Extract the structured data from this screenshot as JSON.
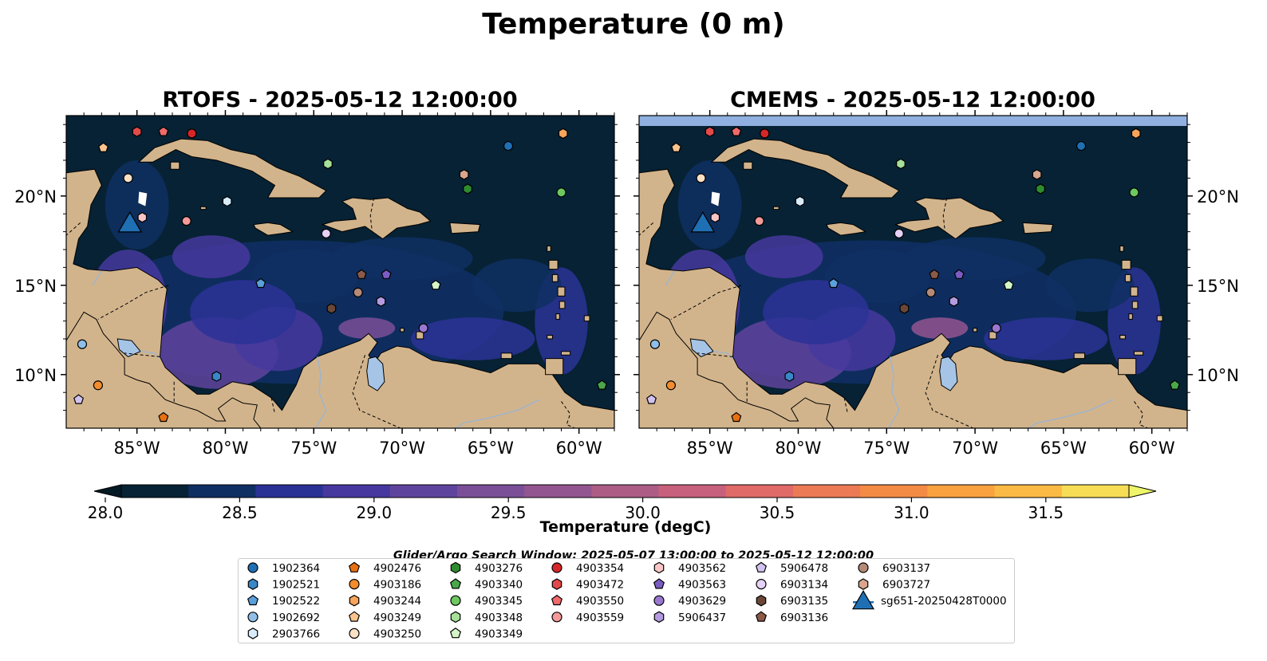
{
  "figure": {
    "suptitle": "Temperature (0 m)",
    "panels": [
      {
        "title": "RTOFS - 2025-05-12 12:00:00"
      },
      {
        "title": "CMEMS - 2025-05-12 12:00:00"
      }
    ],
    "lat_ticks": [
      "20°N",
      "15°N",
      "10°N"
    ],
    "lon_ticks": [
      "85°W",
      "80°W",
      "75°W",
      "70°W",
      "65°W",
      "60°W"
    ],
    "colorbar": {
      "label": "Temperature (degC)",
      "ticks": [
        "28.0",
        "28.5",
        "29.0",
        "29.5",
        "30.0",
        "30.5",
        "31.0",
        "31.5"
      ],
      "colors": [
        "#062234",
        "#0f2f63",
        "#2b3296",
        "#46389f",
        "#5f449d",
        "#7a4f98",
        "#93558f",
        "#ad5c86",
        "#c7607c",
        "#df6a68",
        "#ec7a55",
        "#f48b45",
        "#f9a23f",
        "#faba44",
        "#f7dd56"
      ],
      "under_color": "#041a25",
      "over_color": "#eef56a"
    },
    "legend": {
      "title": "Glider/Argo Search Window: 2025-05-07 13:00:00 to 2025-05-12 12:00:00"
    },
    "map_colors": {
      "land": "#d2b48c",
      "ocean_dark": "#062234",
      "lake": "#a6c4e6",
      "border": "#000000"
    }
  },
  "chart_data": {
    "type": "scatter",
    "x_axis": {
      "label": "",
      "range": [
        -89,
        -58
      ],
      "unit": "degrees longitude"
    },
    "y_axis": {
      "label": "",
      "range": [
        7,
        24.5
      ],
      "unit": "degrees latitude"
    },
    "series": [
      {
        "name": "1902364",
        "marker": "circle",
        "color": "#1f6fb4",
        "x": [
          -64.0
        ],
        "y": [
          22.8
        ]
      },
      {
        "name": "1902521",
        "marker": "hexagon",
        "color": "#3a87c8",
        "x": [
          -80.5
        ],
        "y": [
          9.9
        ]
      },
      {
        "name": "1902522",
        "marker": "pentagon",
        "color": "#5aa0da",
        "x": [
          -78.0
        ],
        "y": [
          15.1
        ]
      },
      {
        "name": "1902692",
        "marker": "circle",
        "color": "#8fbfe8",
        "x": [
          -88.1
        ],
        "y": [
          11.7
        ]
      },
      {
        "name": "2903766",
        "marker": "hexagon",
        "color": "#d8ebfa",
        "x": [
          -79.9
        ],
        "y": [
          19.7
        ]
      },
      {
        "name": "4902476",
        "marker": "pentagon",
        "color": "#e8700f",
        "x": [
          -83.5
        ],
        "y": [
          7.6
        ]
      },
      {
        "name": "4903186",
        "marker": "circle",
        "color": "#f28c2c",
        "x": [
          -87.2
        ],
        "y": [
          9.4
        ]
      },
      {
        "name": "4903244",
        "marker": "hexagon",
        "color": "#f7a45c",
        "x": [
          -60.9
        ],
        "y": [
          23.5
        ]
      },
      {
        "name": "4903249",
        "marker": "pentagon",
        "color": "#f9c48f",
        "x": [
          -86.9
        ],
        "y": [
          22.7
        ]
      },
      {
        "name": "4903250",
        "marker": "circle",
        "color": "#fde1c5",
        "x": [
          -85.5
        ],
        "y": [
          21.0
        ]
      },
      {
        "name": "4903276",
        "marker": "hexagon",
        "color": "#2e8b2e",
        "x": [
          -66.3
        ],
        "y": [
          20.4
        ]
      },
      {
        "name": "4903340",
        "marker": "pentagon",
        "color": "#4aa84a",
        "x": [
          -58.7
        ],
        "y": [
          9.4
        ]
      },
      {
        "name": "4903345",
        "marker": "circle",
        "color": "#6cc85f",
        "x": [
          -61.0
        ],
        "y": [
          20.2
        ]
      },
      {
        "name": "4903348",
        "marker": "hexagon",
        "color": "#a6e09a",
        "x": [
          -74.2
        ],
        "y": [
          21.8
        ]
      },
      {
        "name": "4903349",
        "marker": "pentagon",
        "color": "#d4f5c8",
        "x": [
          -68.1
        ],
        "y": [
          15.0
        ]
      },
      {
        "name": "4903354",
        "marker": "circle",
        "color": "#d62728",
        "x": [
          -81.9
        ],
        "y": [
          23.5
        ]
      },
      {
        "name": "4903472",
        "marker": "hexagon",
        "color": "#e34a4a",
        "x": [
          -85.0
        ],
        "y": [
          23.6
        ]
      },
      {
        "name": "4903550",
        "marker": "pentagon",
        "color": "#f06a6a",
        "x": [
          -83.5
        ],
        "y": [
          23.6
        ]
      },
      {
        "name": "4903559",
        "marker": "circle",
        "color": "#f49a9a",
        "x": [
          -82.2
        ],
        "y": [
          18.6
        ]
      },
      {
        "name": "4903562",
        "marker": "hexagon",
        "color": "#f8c6c6",
        "x": [
          -84.7
        ],
        "y": [
          18.8
        ]
      },
      {
        "name": "4903563",
        "marker": "pentagon",
        "color": "#7b5cc2",
        "x": [
          -70.9
        ],
        "y": [
          15.6
        ]
      },
      {
        "name": "4903629",
        "marker": "circle",
        "color": "#9a78d0",
        "x": [
          -68.8
        ],
        "y": [
          12.6
        ]
      },
      {
        "name": "5906437",
        "marker": "hexagon",
        "color": "#b49be0",
        "x": [
          -71.2
        ],
        "y": [
          14.1
        ]
      },
      {
        "name": "5906478",
        "marker": "pentagon",
        "color": "#d2c2f0",
        "x": [
          -88.3
        ],
        "y": [
          8.6
        ]
      },
      {
        "name": "6903134",
        "marker": "circle",
        "color": "#e6d2f6",
        "x": [
          -74.3
        ],
        "y": [
          17.9
        ]
      },
      {
        "name": "6903135",
        "marker": "hexagon",
        "color": "#6b4737",
        "x": [
          -74.0
        ],
        "y": [
          13.7
        ]
      },
      {
        "name": "6903136",
        "marker": "pentagon",
        "color": "#8b5a48",
        "x": [
          -72.3
        ],
        "y": [
          15.6
        ]
      },
      {
        "name": "6903137",
        "marker": "circle",
        "color": "#b58a78",
        "x": [
          -72.5
        ],
        "y": [
          14.6
        ]
      },
      {
        "name": "6903727",
        "marker": "hexagon",
        "color": "#d9a58e",
        "x": [
          -66.5
        ],
        "y": [
          21.2
        ]
      },
      {
        "name": "sg651-20250428T0000",
        "marker": "triangle",
        "color": "#1f6fb4",
        "x": [
          -85.4
        ],
        "y": [
          18.5
        ]
      }
    ]
  }
}
